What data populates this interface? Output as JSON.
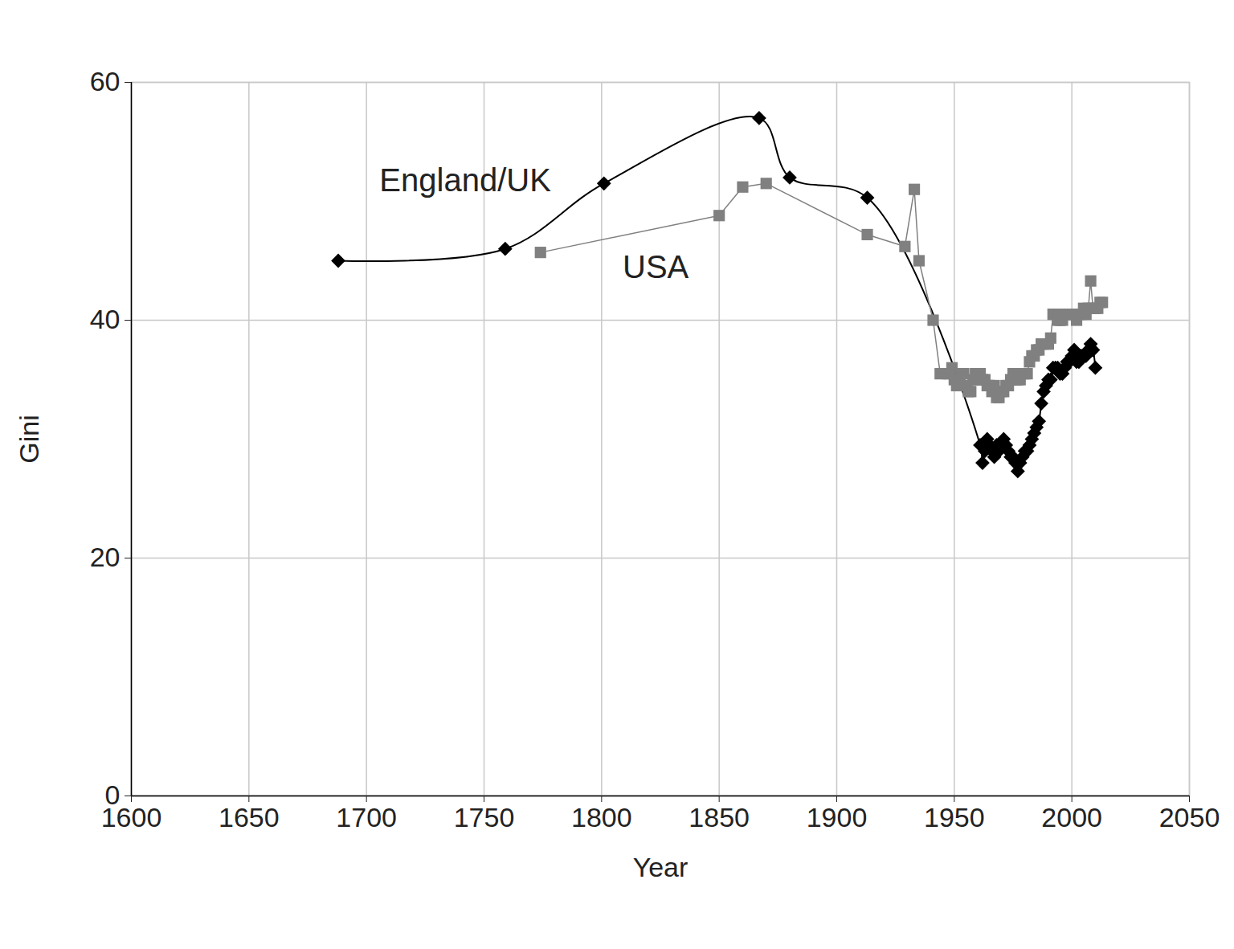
{
  "chart_data": {
    "type": "line",
    "x_label": "Year",
    "y_label": "Gini",
    "xlim": [
      1600,
      2050
    ],
    "xticks": [
      1600,
      1650,
      1700,
      1750,
      1800,
      1850,
      1900,
      1950,
      2000,
      2050
    ],
    "ylim": [
      0,
      60
    ],
    "yticks": [
      0,
      20,
      40,
      60
    ],
    "grid": true,
    "annotations": [
      {
        "text": "England/UK",
        "x": 1742,
        "y": 51.7
      },
      {
        "text": "USA",
        "x": 1823,
        "y": 44.4
      }
    ],
    "series": [
      {
        "name": "England/UK",
        "color": "#000000",
        "marker": "diamond",
        "line_style": "smooth",
        "x": [
          1688,
          1759,
          1801,
          1867,
          1880,
          1913,
          1961,
          1962,
          1963,
          1964,
          1965,
          1966,
          1967,
          1968,
          1969,
          1970,
          1971,
          1972,
          1973,
          1974,
          1975,
          1976,
          1977,
          1978,
          1979,
          1980,
          1981,
          1982,
          1983,
          1984,
          1985,
          1986,
          1987,
          1988,
          1989,
          1990,
          1991,
          1992,
          1993,
          1994,
          1995,
          1996,
          1997,
          1998,
          1999,
          2000,
          2001,
          2002,
          2003,
          2004,
          2005,
          2006,
          2007,
          2008,
          2009,
          2010
        ],
        "values": [
          45,
          46,
          51.5,
          57,
          52,
          50.3,
          29.5,
          28,
          29,
          30,
          29.5,
          29,
          28.5,
          29.5,
          29,
          29.5,
          30,
          29.5,
          29,
          28.5,
          28.5,
          28,
          27.3,
          28,
          28.5,
          29,
          29,
          29.5,
          30,
          30.5,
          31,
          31.5,
          33,
          34,
          34.5,
          35,
          35,
          36,
          36,
          36,
          35.5,
          35.5,
          36,
          36.5,
          36.5,
          37,
          37.5,
          36.5,
          36.5,
          37,
          37,
          37,
          37.5,
          38,
          37.5,
          36
        ]
      },
      {
        "name": "USA",
        "color": "#808080",
        "marker": "square",
        "line_style": "solid",
        "x": [
          1774,
          1850,
          1860,
          1870,
          1913,
          1929,
          1933,
          1935,
          1941,
          1944,
          1947,
          1948,
          1949,
          1950,
          1951,
          1952,
          1953,
          1954,
          1955,
          1956,
          1957,
          1958,
          1959,
          1960,
          1961,
          1962,
          1963,
          1964,
          1965,
          1966,
          1967,
          1968,
          1969,
          1970,
          1971,
          1972,
          1973,
          1974,
          1975,
          1976,
          1977,
          1978,
          1979,
          1980,
          1981,
          1982,
          1983,
          1984,
          1985,
          1986,
          1987,
          1988,
          1989,
          1990,
          1991,
          1992,
          1993,
          1994,
          1995,
          1996,
          1997,
          1998,
          1999,
          2000,
          2001,
          2002,
          2003,
          2004,
          2005,
          2006,
          2007,
          2008,
          2009,
          2010,
          2011,
          2012,
          2013
        ],
        "values": [
          45.7,
          48.8,
          51.2,
          51.5,
          47.2,
          46.2,
          51,
          45,
          40,
          35.5,
          35.5,
          35.5,
          36,
          35,
          34.5,
          35,
          35.5,
          35.5,
          34.5,
          34,
          34,
          35,
          35.5,
          35,
          35.5,
          35,
          35,
          34.5,
          34.5,
          34,
          34.5,
          33.5,
          33.5,
          34,
          34,
          34.5,
          34.5,
          35,
          35.5,
          35,
          35,
          35,
          35.5,
          35.5,
          35.5,
          36.5,
          37,
          37,
          37.5,
          37.5,
          38,
          38,
          38,
          38,
          38.5,
          40.5,
          40.5,
          40,
          40,
          40,
          40.5,
          40.5,
          40.5,
          40.5,
          40.5,
          40,
          40.5,
          40.5,
          41,
          40.5,
          41,
          43.3,
          41,
          41,
          41,
          41.5,
          41.5
        ]
      }
    ]
  }
}
